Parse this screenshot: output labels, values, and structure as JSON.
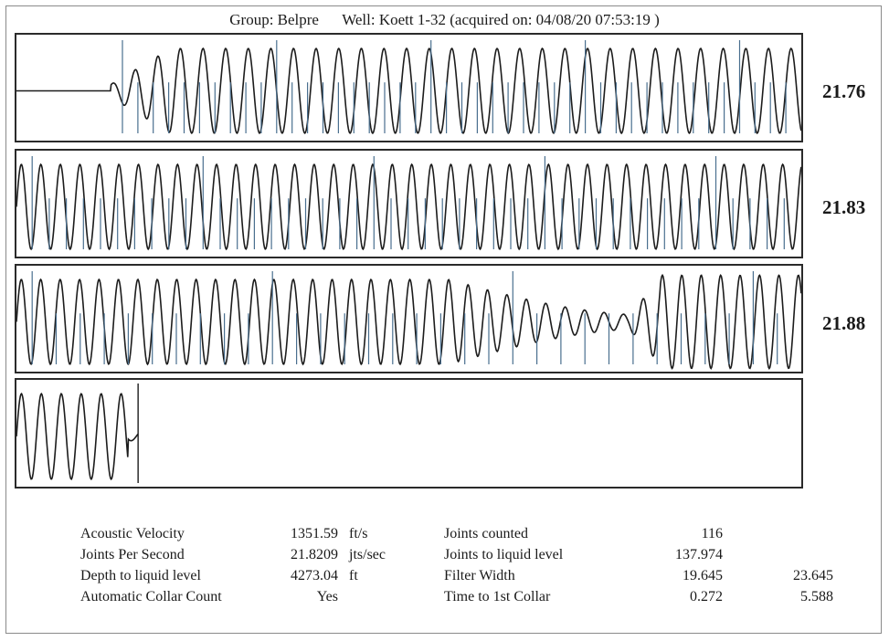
{
  "header": {
    "group": "Group: Belpre",
    "well": "Well: Koett 1-32 (acquired on: 04/08/20 07:53:19 )"
  },
  "chart_data": {
    "type": "line",
    "title": "Group: Belpre     Well: Koett 1-32 (acquired on: 04/08/20 07:53:19 )",
    "panels": [
      {
        "rate_label": "21.76",
        "cycles": 34.7,
        "flat_fraction": 0.12,
        "amplitude_profile": "ramp-up",
        "marker_count": 44,
        "major_marker_every": 10
      },
      {
        "rate_label": "21.83",
        "cycles": 40.2,
        "flat_fraction": 0,
        "amplitude_profile": "constant",
        "marker_count": 45,
        "major_marker_every": 10
      },
      {
        "rate_label": "21.88",
        "cycles": 40.4,
        "flat_fraction": 0,
        "amplitude_profile": "fade-then-surge",
        "marker_count": 32,
        "major_marker_every": 10
      },
      {
        "rate_label": "",
        "cycles": 6.1,
        "flat_fraction": 0,
        "amplitude_profile": "end-at-cursor",
        "marker_count": 0,
        "major_marker_every": 10
      }
    ],
    "grid": false
  },
  "results": {
    "left": [
      {
        "label": "Acoustic Velocity",
        "value": "1351.59",
        "unit": "ft/s"
      },
      {
        "label": "Joints Per Second",
        "value": "21.8209",
        "unit": "jts/sec"
      },
      {
        "label": "Depth to liquid level",
        "value": "4273.04",
        "unit": "ft"
      },
      {
        "label": "Automatic Collar Count",
        "value": "Yes",
        "unit": ""
      }
    ],
    "right": [
      {
        "label": "Joints counted",
        "value": "116",
        "value2": ""
      },
      {
        "label": "Joints to liquid level",
        "value": "137.974",
        "value2": ""
      },
      {
        "label": "Filter Width",
        "value": "19.645",
        "value2": "23.645"
      },
      {
        "label": "Time to 1st Collar",
        "value": "0.272",
        "value2": "5.588"
      }
    ]
  },
  "colors": {
    "trace": "#1c1c1c",
    "marker": "#4a6f8f",
    "frame": "#2a2a2a"
  }
}
